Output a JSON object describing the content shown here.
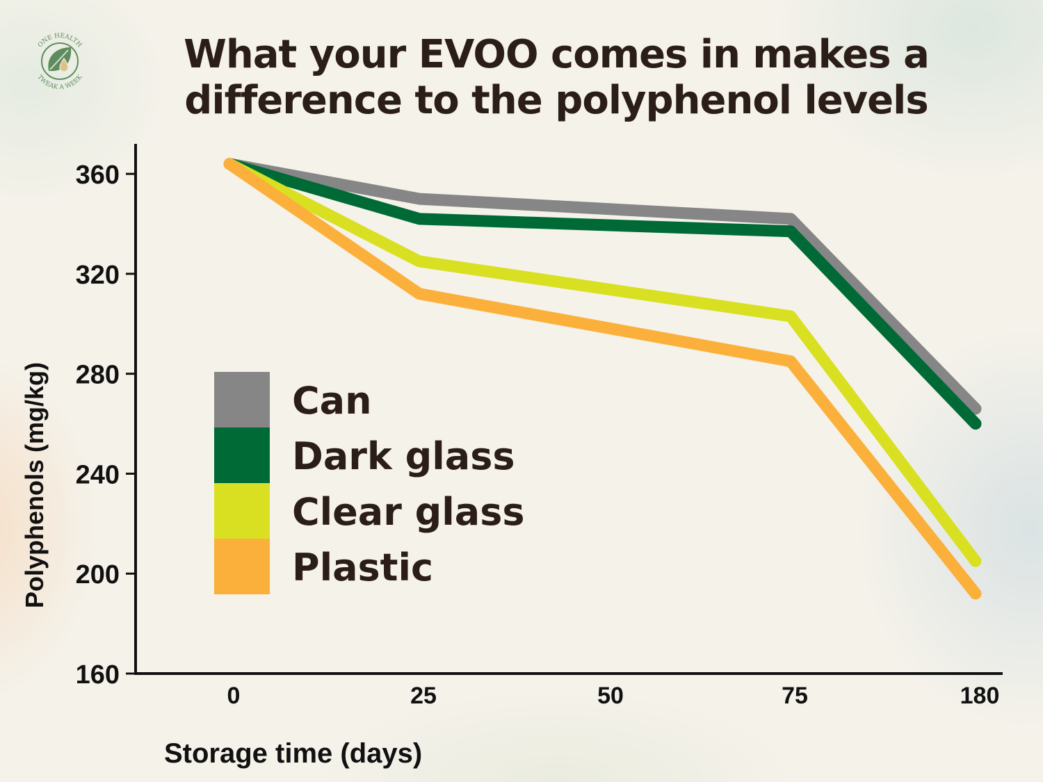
{
  "logo": {
    "text_top": "ONE HEALTH",
    "text_bottom": "TWEAK A WEEK",
    "icon": "leaf-drop-icon",
    "color": "#5e8c5e"
  },
  "chart_data": {
    "type": "line",
    "title_lines": [
      "What your EVOO comes in makes a",
      "difference to the polyphenol levels"
    ],
    "xlabel": "Storage time (days)",
    "ylabel": "Polyphenols (mg/kg)",
    "categories": [
      "0",
      "25",
      "50",
      "75",
      "180"
    ],
    "y_ticks": [
      160,
      200,
      240,
      280,
      320,
      360
    ],
    "ylim": [
      160,
      372
    ],
    "grid": false,
    "legend_position": "center-left",
    "series": [
      {
        "name": "Can",
        "color": "#868686",
        "points": [
          {
            "x": "0",
            "y": 364
          },
          {
            "x": "25",
            "y": 350
          },
          {
            "x": "75",
            "y": 342
          },
          {
            "x": "180",
            "y": 266
          }
        ]
      },
      {
        "name": "Dark glass",
        "color": "#006a36",
        "points": [
          {
            "x": "0",
            "y": 364
          },
          {
            "x": "25",
            "y": 342
          },
          {
            "x": "75",
            "y": 337
          },
          {
            "x": "180",
            "y": 260
          }
        ]
      },
      {
        "name": "Clear glass",
        "color": "#d9e021",
        "points": [
          {
            "x": "0",
            "y": 364
          },
          {
            "x": "25",
            "y": 325
          },
          {
            "x": "75",
            "y": 303
          },
          {
            "x": "180",
            "y": 205
          }
        ]
      },
      {
        "name": "Plastic",
        "color": "#fbb03b",
        "points": [
          {
            "x": "0",
            "y": 364
          },
          {
            "x": "25",
            "y": 312
          },
          {
            "x": "75",
            "y": 285
          },
          {
            "x": "180",
            "y": 192
          }
        ]
      }
    ]
  }
}
